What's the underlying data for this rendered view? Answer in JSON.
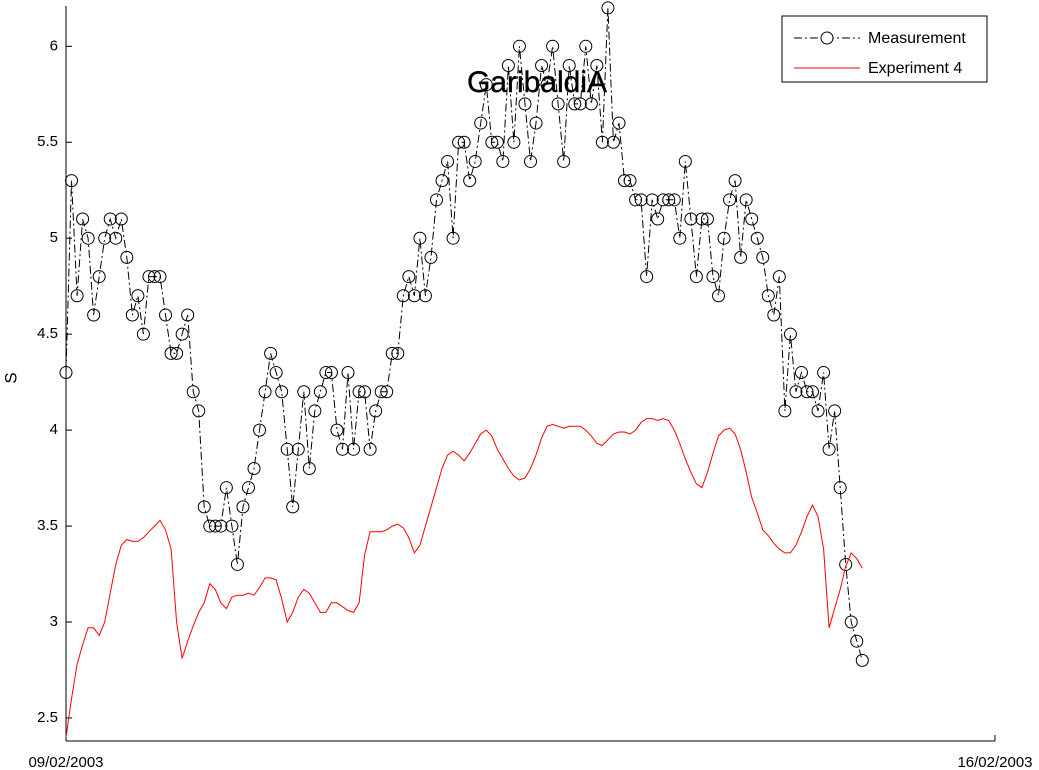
{
  "chart_data": {
    "type": "line",
    "title": "GaribaldiA",
    "ylabel": "S",
    "x": [
      0,
      1,
      2,
      3,
      4,
      5,
      6,
      7,
      8,
      9,
      10,
      11,
      12,
      13,
      14,
      15,
      16,
      17,
      18,
      19,
      20,
      21,
      22,
      23,
      24,
      25,
      26,
      27,
      28,
      29,
      30,
      31,
      32,
      33,
      34,
      35,
      36,
      37,
      38,
      39,
      40,
      41,
      42,
      43,
      44,
      45,
      46,
      47,
      48,
      49,
      50,
      51,
      52,
      53,
      54,
      55,
      56,
      57,
      58,
      59,
      60,
      61,
      62,
      63,
      64,
      65,
      66,
      67,
      68,
      69,
      70,
      71,
      72,
      73,
      74,
      75,
      76,
      77,
      78,
      79,
      80,
      81,
      82,
      83,
      84,
      85,
      86,
      87,
      88,
      89,
      90,
      91,
      92,
      93,
      94,
      95,
      96,
      97,
      98,
      99,
      100,
      101,
      102,
      103,
      104,
      105,
      106,
      107,
      108,
      109,
      110,
      111,
      112,
      113,
      114,
      115,
      116,
      117,
      118,
      119,
      120,
      121,
      122,
      123,
      124,
      125,
      126,
      127,
      128,
      129,
      130,
      131,
      132,
      133,
      134,
      135,
      136,
      137,
      138,
      139,
      140,
      141,
      142,
      143,
      144
    ],
    "series": [
      {
        "name": "Measurement",
        "color": "#000000",
        "linestyle": "dashdot",
        "marker": "circle",
        "values": [
          4.3,
          5.3,
          4.7,
          5.1,
          5.0,
          4.6,
          4.8,
          5.0,
          5.1,
          5.0,
          5.1,
          4.9,
          4.6,
          4.7,
          4.5,
          4.8,
          4.8,
          4.8,
          4.6,
          4.4,
          4.4,
          4.5,
          4.6,
          4.2,
          4.1,
          3.6,
          3.5,
          3.5,
          3.5,
          3.7,
          3.5,
          3.3,
          3.6,
          3.7,
          3.8,
          4.0,
          4.2,
          4.4,
          4.3,
          4.2,
          3.9,
          3.6,
          3.9,
          4.2,
          3.8,
          4.1,
          4.2,
          4.3,
          4.3,
          4.0,
          3.9,
          4.3,
          3.9,
          4.2,
          4.2,
          3.9,
          4.1,
          4.2,
          4.2,
          4.4,
          4.4,
          4.7,
          4.8,
          4.7,
          5.0,
          4.7,
          4.9,
          5.2,
          5.3,
          5.4,
          5.0,
          5.5,
          5.5,
          5.3,
          5.4,
          5.6,
          5.8,
          5.5,
          5.5,
          5.4,
          5.9,
          5.5,
          6.0,
          5.7,
          5.4,
          5.6,
          5.9,
          5.8,
          6.0,
          5.7,
          5.4,
          5.9,
          5.7,
          5.7,
          6.0,
          5.7,
          5.9,
          5.5,
          6.2,
          5.5,
          5.6,
          5.3,
          5.3,
          5.2,
          5.2,
          4.8,
          5.2,
          5.1,
          5.2,
          5.2,
          5.2,
          5.0,
          5.4,
          5.1,
          4.8,
          5.1,
          5.1,
          4.8,
          4.7,
          5.0,
          5.2,
          5.3,
          4.9,
          5.2,
          5.1,
          5.0,
          4.9,
          4.7,
          4.6,
          4.8,
          4.1,
          4.5,
          4.2,
          4.3,
          4.2,
          4.2,
          4.1,
          4.3,
          3.9,
          4.1,
          3.7,
          3.3,
          3.0,
          2.9,
          2.8
        ]
      },
      {
        "name": "Experiment 4",
        "color": "#ff0000",
        "linestyle": "solid",
        "marker": "none",
        "values": [
          2.4,
          2.6,
          2.78,
          2.88,
          2.97,
          2.97,
          2.93,
          3.0,
          3.15,
          3.3,
          3.4,
          3.43,
          3.42,
          3.42,
          3.44,
          3.47,
          3.5,
          3.53,
          3.48,
          3.38,
          3.0,
          2.81,
          2.9,
          2.98,
          3.05,
          3.1,
          3.2,
          3.17,
          3.1,
          3.07,
          3.13,
          3.14,
          3.14,
          3.15,
          3.14,
          3.18,
          3.23,
          3.23,
          3.22,
          3.12,
          3.0,
          3.05,
          3.13,
          3.17,
          3.15,
          3.1,
          3.05,
          3.05,
          3.1,
          3.1,
          3.08,
          3.06,
          3.05,
          3.1,
          3.35,
          3.47,
          3.47,
          3.47,
          3.48,
          3.5,
          3.51,
          3.49,
          3.44,
          3.36,
          3.4,
          3.5,
          3.6,
          3.7,
          3.8,
          3.87,
          3.89,
          3.87,
          3.84,
          3.88,
          3.93,
          3.98,
          4.0,
          3.97,
          3.9,
          3.85,
          3.8,
          3.76,
          3.74,
          3.75,
          3.8,
          3.87,
          3.96,
          4.02,
          4.03,
          4.02,
          4.01,
          4.02,
          4.02,
          4.02,
          4.0,
          3.97,
          3.93,
          3.92,
          3.95,
          3.98,
          3.99,
          3.99,
          3.98,
          4.0,
          4.04,
          4.06,
          4.06,
          4.05,
          4.06,
          4.05,
          4.0,
          3.93,
          3.85,
          3.78,
          3.72,
          3.7,
          3.78,
          3.88,
          3.97,
          4.0,
          4.01,
          3.98,
          3.9,
          3.78,
          3.65,
          3.57,
          3.48,
          3.45,
          3.41,
          3.38,
          3.36,
          3.36,
          3.4,
          3.47,
          3.55,
          3.61,
          3.55,
          3.38,
          2.97,
          3.07,
          3.17,
          3.29,
          3.36,
          3.33,
          3.28
        ]
      }
    ],
    "xlim": [
      0,
      168
    ],
    "xticks": [
      {
        "value": 0,
        "label": "09/02/2003"
      },
      {
        "value": 168,
        "label": "16/02/2003"
      }
    ],
    "ylim": [
      2.38,
      6.21
    ],
    "yticks": [
      2.5,
      3,
      3.5,
      4,
      4.5,
      5,
      5.5,
      6
    ],
    "grid": false,
    "legend": "upper right"
  }
}
